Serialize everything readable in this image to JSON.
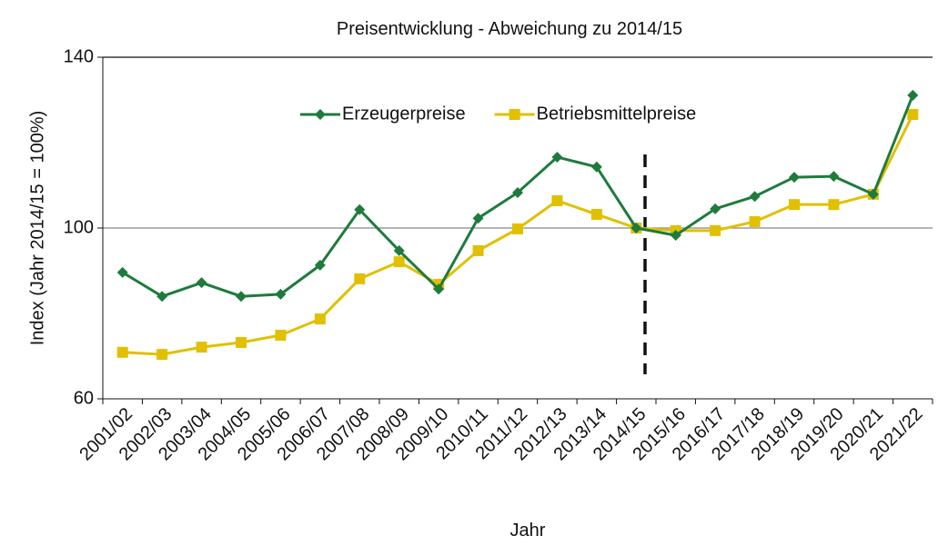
{
  "chart_data": {
    "type": "line",
    "title": "Preisentwicklung - Abweichung zu 2014/15",
    "x_label": "Jahr",
    "y_label": "Index (Jahr 2014/15 = 100%)",
    "categories": [
      "2001/02",
      "2002/03",
      "2003/04",
      "2004/05",
      "2005/06",
      "2006/07",
      "2007/08",
      "2008/09",
      "2009/10",
      "2010/11",
      "2011/12",
      "2012/13",
      "2013/14",
      "2014/15",
      "2015/16",
      "2016/17",
      "2017/18",
      "2018/19",
      "2019/20",
      "2020/21",
      "2021/22"
    ],
    "series": [
      {
        "name": "Erzeugerpreise",
        "color": "#1e7b3c",
        "marker": "diamond",
        "values": [
          89.6,
          84,
          87.2,
          84,
          84.5,
          91.3,
          104.3,
          94.7,
          85.7,
          102.3,
          108.3,
          116.6,
          114.3,
          100,
          98.3,
          104.5,
          107.4,
          111.9,
          112.1,
          107.9,
          131.1
        ]
      },
      {
        "name": "Betriebsmittelpreise",
        "color": "#e0c000",
        "marker": "square",
        "values": [
          70.9,
          70.4,
          72.1,
          73.2,
          74.9,
          78.7,
          88.1,
          92.1,
          86.8,
          94.7,
          99.8,
          106.4,
          103.2,
          100,
          99.4,
          99.4,
          101.5,
          105.5,
          105.5,
          107.9,
          126.6
        ]
      }
    ],
    "ylim": [
      60,
      140
    ],
    "yticks": [
      60,
      100,
      140
    ],
    "grid": true,
    "legend": "top"
  }
}
